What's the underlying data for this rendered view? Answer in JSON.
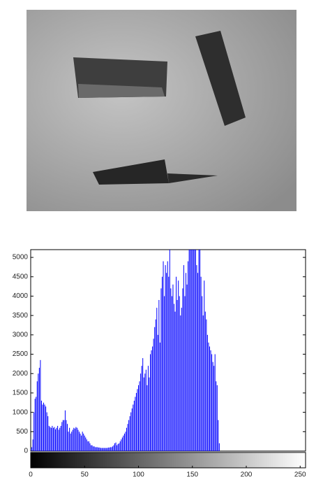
{
  "chart_data": {
    "type": "bar",
    "color": "#0000ff",
    "x": [
      0,
      1,
      2,
      3,
      4,
      5,
      6,
      7,
      8,
      9,
      10,
      11,
      12,
      13,
      14,
      15,
      16,
      17,
      18,
      19,
      20,
      21,
      22,
      23,
      24,
      25,
      26,
      27,
      28,
      29,
      30,
      31,
      32,
      33,
      34,
      35,
      36,
      37,
      38,
      39,
      40,
      41,
      42,
      43,
      44,
      45,
      46,
      47,
      48,
      49,
      50,
      51,
      52,
      53,
      54,
      55,
      56,
      57,
      58,
      59,
      60,
      61,
      62,
      63,
      64,
      65,
      66,
      67,
      68,
      69,
      70,
      71,
      72,
      73,
      74,
      75,
      76,
      77,
      78,
      79,
      80,
      81,
      82,
      83,
      84,
      85,
      86,
      87,
      88,
      89,
      90,
      91,
      92,
      93,
      94,
      95,
      96,
      97,
      98,
      99,
      100,
      101,
      102,
      103,
      104,
      105,
      106,
      107,
      108,
      109,
      110,
      111,
      112,
      113,
      114,
      115,
      116,
      117,
      118,
      119,
      120,
      121,
      122,
      123,
      124,
      125,
      126,
      127,
      128,
      129,
      130,
      131,
      132,
      133,
      134,
      135,
      136,
      137,
      138,
      139,
      140,
      141,
      142,
      143,
      144,
      145,
      146,
      147,
      148,
      149,
      150,
      151,
      152,
      153,
      154,
      155,
      156,
      157,
      158,
      159,
      160,
      161,
      162,
      163,
      164,
      165,
      166,
      167,
      168,
      169,
      170,
      171,
      172,
      173,
      174,
      175,
      176,
      177,
      178,
      179,
      180,
      181,
      182,
      183,
      184,
      185,
      186,
      187,
      188,
      189,
      190,
      191,
      192,
      193,
      194,
      195,
      196,
      197,
      198,
      199,
      200,
      201,
      202,
      203,
      204,
      205,
      206,
      207,
      208,
      209,
      210,
      211,
      212,
      213,
      214,
      215,
      216,
      217,
      218,
      219,
      220,
      221,
      222,
      223,
      224,
      225,
      226,
      227,
      228,
      229,
      230,
      231,
      232,
      233,
      234,
      235,
      236,
      237,
      238,
      239,
      240,
      241,
      242,
      243,
      244,
      245,
      246,
      247,
      248,
      249,
      250,
      251,
      252,
      253,
      254,
      255
    ],
    "values": [
      50,
      100,
      300,
      1000,
      1350,
      1400,
      1800,
      2000,
      2150,
      2350,
      1300,
      1200,
      1250,
      1200,
      1150,
      1000,
      900,
      650,
      620,
      600,
      650,
      600,
      620,
      560,
      600,
      650,
      550,
      600,
      650,
      750,
      800,
      800,
      1050,
      800,
      700,
      500,
      600,
      450,
      500,
      550,
      600,
      580,
      620,
      600,
      550,
      500,
      450,
      400,
      500,
      450,
      400,
      350,
      300,
      250,
      250,
      200,
      150,
      150,
      120,
      120,
      100,
      100,
      100,
      90,
      90,
      80,
      80,
      80,
      80,
      80,
      80,
      80,
      90,
      90,
      100,
      100,
      120,
      150,
      200,
      220,
      150,
      180,
      200,
      250,
      300,
      350,
      400,
      450,
      500,
      600,
      700,
      800,
      900,
      1000,
      1100,
      1200,
      1300,
      1400,
      1500,
      1600,
      1700,
      1800,
      2000,
      2200,
      2400,
      1900,
      2000,
      2100,
      1700,
      2200,
      1900,
      2500,
      2600,
      2700,
      2900,
      3200,
      3400,
      3700,
      3000,
      3900,
      2800,
      4200,
      4500,
      4900,
      4000,
      4800,
      4600,
      4900,
      4500,
      5200,
      4200,
      4000,
      4300,
      3800,
      3600,
      4500,
      3900,
      4400,
      4000,
      3500,
      3700,
      4200,
      4800,
      4000,
      4600,
      4300,
      4900,
      5200,
      5200,
      5200,
      5200,
      5200,
      5200,
      5200,
      4800,
      4600,
      5200,
      5200,
      4500,
      4000,
      3500,
      4400,
      3600,
      3400,
      3000,
      2800,
      2700,
      2600,
      2500,
      2300,
      2200,
      2500,
      1800,
      1700,
      800,
      200,
      0,
      0,
      0,
      0,
      0,
      0,
      0,
      0,
      0,
      0,
      0,
      0,
      0,
      0,
      0,
      0,
      0,
      0,
      0,
      0,
      0,
      0,
      0,
      0,
      0,
      0,
      0,
      0,
      0,
      0,
      0,
      0,
      0,
      0,
      0,
      0,
      0,
      0,
      0,
      0,
      0,
      0,
      0,
      0,
      0,
      0,
      0,
      0,
      0,
      0,
      0,
      0,
      0,
      0,
      0,
      0,
      0,
      0,
      0,
      0,
      0,
      0,
      0,
      0,
      0,
      0,
      0,
      0,
      0,
      0,
      0,
      0,
      0,
      0,
      0,
      0,
      0,
      0,
      0,
      0
    ],
    "xlim": [
      0,
      255
    ],
    "xticks": [
      0,
      50,
      100,
      150,
      200,
      250
    ],
    "ylim": [
      0,
      5200
    ],
    "yticks": [
      0,
      500,
      1000,
      1500,
      2000,
      2500,
      3000,
      3500,
      4000,
      4500,
      5000
    ]
  }
}
